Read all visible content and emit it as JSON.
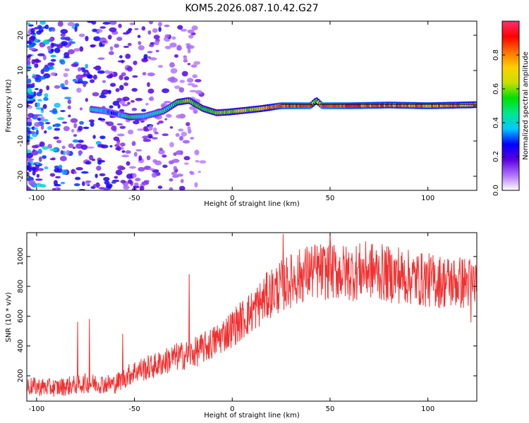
{
  "title": "KOM5.2026.087.10.42.G27",
  "chart_data": [
    {
      "type": "heatmap",
      "name": "spectrogram",
      "xlabel": "Height of straight line (km)",
      "ylabel": "Frequency (Hz)",
      "xlim": [
        -105,
        125
      ],
      "ylim": [
        -24,
        24
      ],
      "xticks": [
        -100,
        -50,
        0,
        50,
        100
      ],
      "yticks": [
        -20,
        -10,
        0,
        10,
        20
      ],
      "colorbar": {
        "label": "Normalized spectral amplitude",
        "range": [
          0,
          1
        ],
        "ticks": [
          0.0,
          0.2,
          0.4,
          0.6,
          0.8
        ],
        "tick_labels": [
          "0.0",
          "0.2",
          "0.4",
          "0.6",
          "0.8"
        ],
        "colormap": [
          "#ffffff",
          "#b070ff",
          "#5a00e0",
          "#0000ff",
          "#00c8ff",
          "#00e890",
          "#00e000",
          "#c8e000",
          "#ffd000",
          "#ff7000",
          "#ff0000",
          "#ff3070"
        ]
      },
      "ridge": {
        "x": [
          -72,
          -65,
          -60,
          -52,
          -45,
          -35,
          -28,
          -22,
          -15,
          -8,
          -2,
          5,
          15,
          25,
          40,
          43,
          46,
          60,
          80,
          100,
          125
        ],
        "y": [
          -1.0,
          -1.5,
          -2.2,
          -3.2,
          -3.0,
          -1.5,
          1.0,
          1.5,
          -0.8,
          -2.0,
          -1.8,
          -1.4,
          -0.8,
          0.0,
          0.0,
          1.5,
          0.0,
          0.0,
          0.2,
          0.0,
          0.3
        ],
        "intensity": [
          0.45,
          0.35,
          0.3,
          0.5,
          0.4,
          0.45,
          0.55,
          0.6,
          0.55,
          0.6,
          0.65,
          0.65,
          0.7,
          0.9,
          0.95,
          0.6,
          0.95,
          0.9,
          0.85,
          0.85,
          0.8
        ]
      }
    },
    {
      "type": "line",
      "name": "snr",
      "xlabel": "Height of straight line (km)",
      "ylabel": "SNR (10 * v/v)",
      "xlim": [
        -105,
        125
      ],
      "ylim": [
        30,
        1160
      ],
      "xticks": [
        -100,
        -50,
        0,
        50,
        100
      ],
      "yticks": [
        200,
        400,
        600,
        800,
        1000
      ],
      "color": "#f23030",
      "trend": {
        "x": [
          -105,
          -90,
          -75,
          -60,
          -50,
          -40,
          -30,
          -20,
          -10,
          0,
          10,
          20,
          30,
          40,
          50,
          60,
          70,
          80,
          90,
          100,
          110,
          125
        ],
        "y": [
          130,
          120,
          150,
          145,
          230,
          265,
          320,
          350,
          420,
          520,
          630,
          760,
          840,
          900,
          900,
          890,
          910,
          880,
          860,
          840,
          830,
          820
        ]
      },
      "spikes": [
        {
          "x": -79,
          "y": 560
        },
        {
          "x": -73,
          "y": 580
        },
        {
          "x": -56,
          "y": 480
        },
        {
          "x": -22,
          "y": 880
        },
        {
          "x": 26,
          "y": 1150
        },
        {
          "x": 50,
          "y": 1150
        },
        {
          "x": 85,
          "y": 1060
        },
        {
          "x": 122,
          "y": 560
        }
      ]
    }
  ]
}
